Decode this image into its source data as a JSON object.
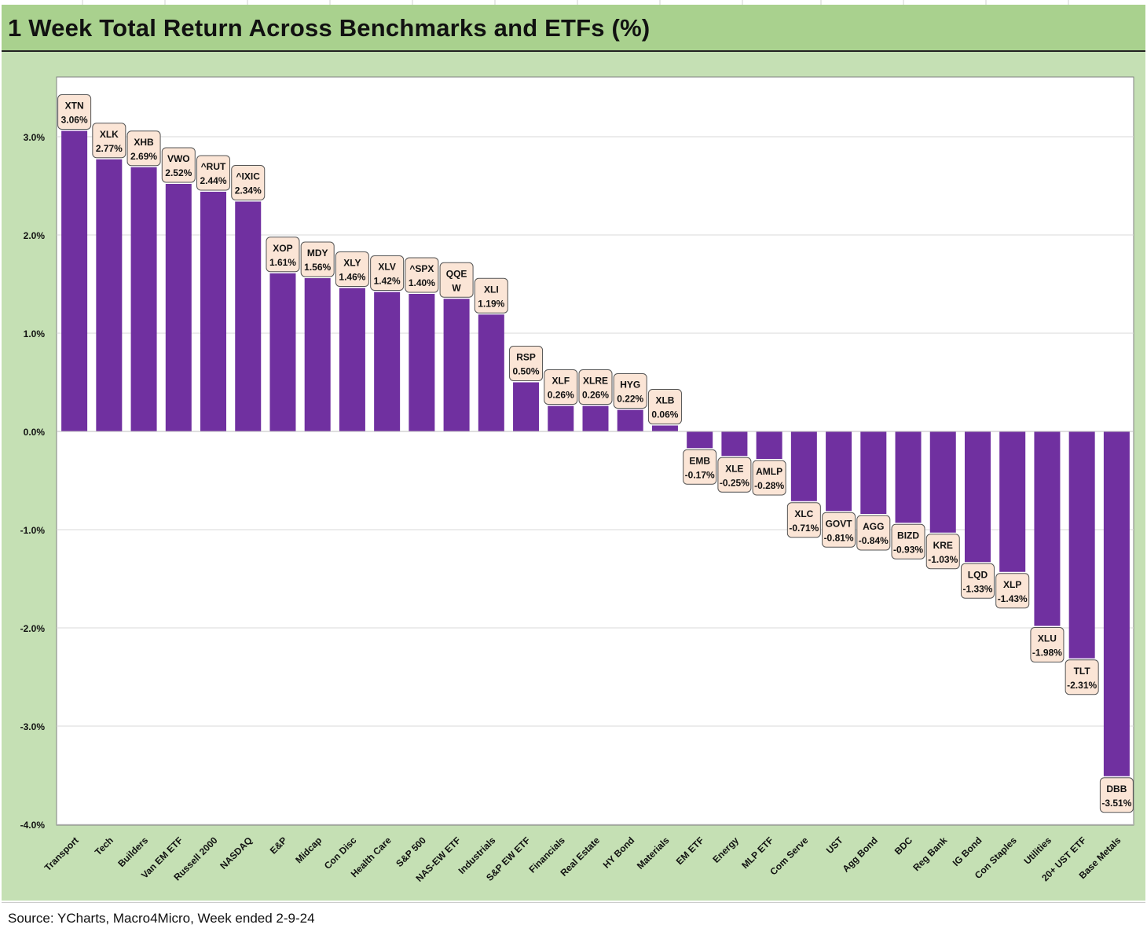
{
  "title": "1 Week Total Return Across Benchmarks and ETFs (%)",
  "source": "Source: YCharts, Macro4Micro, Week ended 2-9-24",
  "colors": {
    "bar": "#7030a0",
    "label_fill": "#fbe5d6",
    "plot_bg": "#ffffff",
    "outer_bg": "#c5e0b4",
    "title_bg": "#a9d18e"
  },
  "chart_data": {
    "type": "bar",
    "title": "1 Week Total Return Across Benchmarks and ETFs (%)",
    "categories": [
      "Transport",
      "Tech",
      "Builders",
      "Van EM ETF",
      "Russell 2000",
      "NASDAQ",
      "E&P",
      "Midcap",
      "Con Disc",
      "Health Care",
      "S&P 500",
      "NAS-EW ETF",
      "Industrials",
      "S&P EW ETF",
      "Financials",
      "Real Estate",
      "HY Bond",
      "Materials",
      "EM ETF",
      "Energy",
      "MLP ETF",
      "Com Serve",
      "UST",
      "Agg Bond",
      "BDC",
      "Reg Bank",
      "IG Bond",
      "Con Staples",
      "Utilities",
      "20+ UST ETF",
      "Base Metals"
    ],
    "tickers": [
      "XTN",
      "XLK",
      "XHB",
      "VWO",
      "^RUT",
      "^IXIC",
      "XOP",
      "MDY",
      "XLY",
      "XLV",
      "^SPX",
      "QQE W",
      "XLI",
      "RSP",
      "XLF",
      "XLRE",
      "HYG",
      "XLB",
      "EMB",
      "XLE",
      "AMLP",
      "XLC",
      "GOVT",
      "AGG",
      "BIZD",
      "KRE",
      "LQD",
      "XLP",
      "XLU",
      "TLT",
      "DBB"
    ],
    "values": [
      3.06,
      2.77,
      2.69,
      2.52,
      2.44,
      2.34,
      1.61,
      1.56,
      1.46,
      1.42,
      1.4,
      1.35,
      1.19,
      0.5,
      0.26,
      0.26,
      0.22,
      0.06,
      -0.17,
      -0.25,
      -0.28,
      -0.71,
      -0.81,
      -0.84,
      -0.93,
      -1.03,
      -1.33,
      -1.43,
      -1.98,
      -2.31,
      -3.51
    ],
    "labels": [
      "3.06%",
      "2.77%",
      "2.69%",
      "2.52%",
      "2.44%",
      "2.34%",
      "1.61%",
      "1.56%",
      "1.46%",
      "1.42%",
      "1.40%",
      "",
      "1.19%",
      "0.50%",
      "0.26%",
      "0.26%",
      "0.22%",
      "0.06%",
      "-0.17%",
      "-0.25%",
      "-0.28%",
      "-0.71%",
      "-0.81%",
      "-0.84%",
      "-0.93%",
      "-1.03%",
      "-1.33%",
      "-1.43%",
      "-1.98%",
      "-2.31%",
      "-3.51%"
    ],
    "yticks": [
      "3.0%",
      "2.0%",
      "1.0%",
      "0.0%",
      "-1.0%",
      "-2.0%",
      "-3.0%",
      "-4.0%"
    ],
    "ylim": [
      -4,
      3.5
    ],
    "grid": true,
    "legend": "none"
  }
}
